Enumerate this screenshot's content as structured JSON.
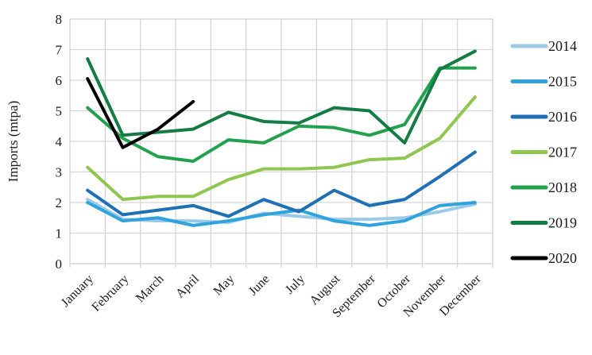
{
  "chart_data": {
    "type": "line",
    "title": "",
    "xlabel": "",
    "ylabel": "Imports (mtpa)",
    "ylim": [
      0,
      8
    ],
    "ytick_step": 1,
    "yticks": [
      "0",
      "1",
      "2",
      "3",
      "4",
      "5",
      "6",
      "7",
      "8"
    ],
    "grid": true,
    "legend_position": "right",
    "categories": [
      "January",
      "February",
      "March",
      "April",
      "May",
      "June",
      "July",
      "August",
      "September",
      "October",
      "November",
      "December"
    ],
    "series": [
      {
        "name": "2014",
        "color": "#9DC9E8",
        "values": [
          2.1,
          1.45,
          1.4,
          1.4,
          1.35,
          1.65,
          1.55,
          1.45,
          1.45,
          1.5,
          1.7,
          1.95
        ]
      },
      {
        "name": "2015",
        "color": "#2FA3DC",
        "values": [
          2.0,
          1.4,
          1.5,
          1.25,
          1.4,
          1.6,
          1.75,
          1.4,
          1.25,
          1.4,
          1.9,
          2.0
        ]
      },
      {
        "name": "2016",
        "color": "#1F6FB5",
        "values": [
          2.4,
          1.6,
          1.75,
          1.9,
          1.55,
          2.1,
          1.7,
          2.4,
          1.9,
          2.1,
          2.85,
          3.65
        ]
      },
      {
        "name": "2017",
        "color": "#8FC64F",
        "values": [
          3.15,
          2.1,
          2.2,
          2.2,
          2.75,
          3.1,
          3.1,
          3.15,
          3.4,
          3.45,
          4.1,
          5.45
        ]
      },
      {
        "name": "2018",
        "color": "#21A14D",
        "values": [
          5.1,
          4.1,
          3.5,
          3.35,
          4.05,
          3.95,
          4.5,
          4.45,
          4.2,
          4.55,
          6.4,
          6.4
        ]
      },
      {
        "name": "2019",
        "color": "#137C44",
        "values": [
          6.7,
          4.2,
          4.3,
          4.4,
          4.95,
          4.65,
          4.6,
          5.1,
          5.0,
          3.95,
          6.35,
          6.95
        ]
      },
      {
        "name": "2020",
        "color": "#000000",
        "values": [
          6.05,
          3.8,
          4.4,
          5.3
        ]
      }
    ],
    "style_colors": {
      "gridline": "#D6D6D6",
      "axis_text": "#1a1a1a",
      "background": "#ffffff"
    }
  }
}
